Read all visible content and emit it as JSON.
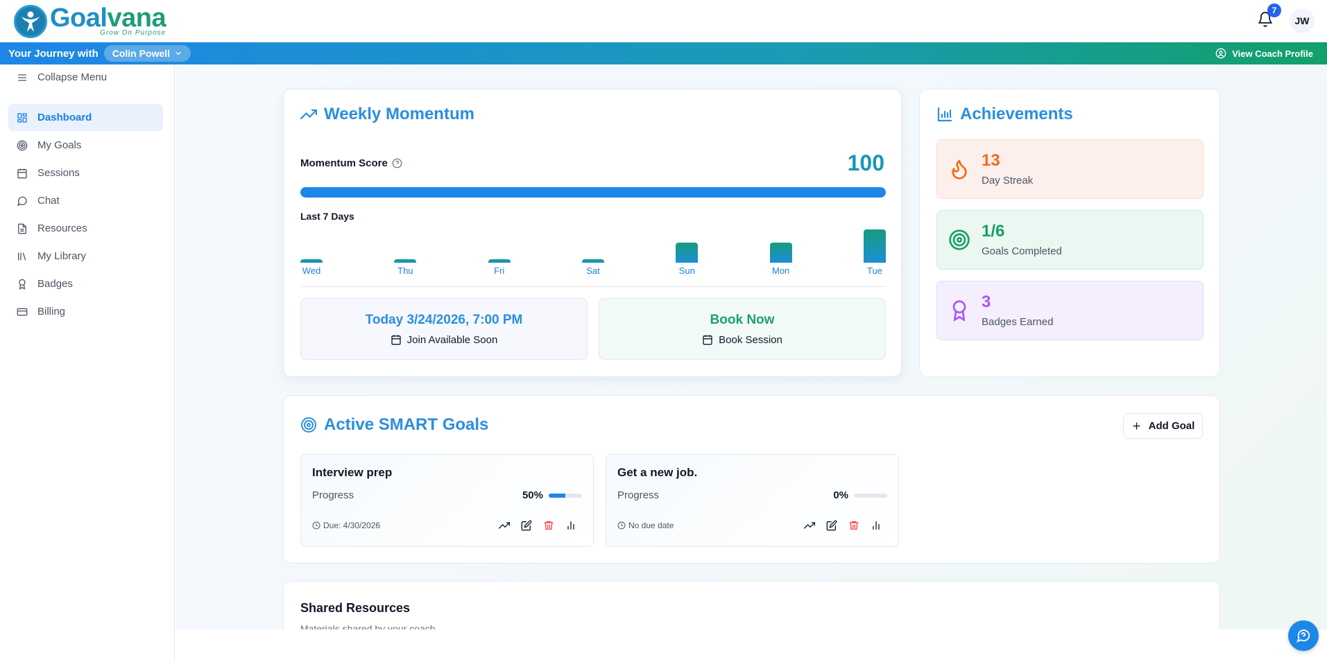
{
  "header": {
    "brand": {
      "word_a": "Goal",
      "word_b": "vana",
      "tagline": "Grow On Purpose"
    },
    "notification_count": "7",
    "user_initials": "JW"
  },
  "journey_bar": {
    "label": "Your Journey with",
    "coach_name": "Colin Powell",
    "view_profile": "View Coach Profile"
  },
  "sidebar": {
    "collapse_label": "Collapse Menu",
    "items": [
      {
        "label": "Dashboard",
        "icon": "dashboard-icon",
        "active": true
      },
      {
        "label": "My Goals",
        "icon": "target-icon"
      },
      {
        "label": "Sessions",
        "icon": "calendar-icon"
      },
      {
        "label": "Chat",
        "icon": "chat-icon"
      },
      {
        "label": "Resources",
        "icon": "document-icon"
      },
      {
        "label": "My Library",
        "icon": "library-icon"
      },
      {
        "label": "Badges",
        "icon": "badge-icon"
      },
      {
        "label": "Billing",
        "icon": "credit-card-icon"
      }
    ]
  },
  "momentum": {
    "title": "Weekly Momentum",
    "score_label": "Momentum Score",
    "score": "100",
    "score_fraction": 1.0,
    "last7_label": "Last 7 Days",
    "days": [
      {
        "label": "Wed",
        "level": 0.1
      },
      {
        "label": "Thu",
        "level": 0.1
      },
      {
        "label": "Fri",
        "level": 0.1
      },
      {
        "label": "Sat",
        "level": 0.1
      },
      {
        "label": "Sun",
        "level": 0.6
      },
      {
        "label": "Mon",
        "level": 0.6
      },
      {
        "label": "Tue",
        "level": 1.0
      }
    ],
    "next_session": {
      "title": "Today 3/24/2026, 7:00 PM",
      "action": "Join Available Soon",
      "color": "#2a8ee0"
    },
    "book": {
      "title": "Book Now",
      "action": "Book Session",
      "color": "#1f9c78"
    }
  },
  "achievements": {
    "title": "Achievements",
    "items": [
      {
        "value": "13",
        "label": "Day Streak",
        "color": "#f26a1b",
        "bg": "#fdf0ec",
        "border": "#f9ddd4",
        "icon": "flame-icon"
      },
      {
        "value": "1/6",
        "label": "Goals Completed",
        "color": "#16a063",
        "bg": "#ebf7f1",
        "border": "#cfeadd",
        "icon": "target-icon"
      },
      {
        "value": "3",
        "label": "Badges Earned",
        "color": "#a855f7",
        "bg": "#f5eefe",
        "border": "#e6d7fb",
        "icon": "award-icon"
      }
    ]
  },
  "goals": {
    "title": "Active SMART Goals",
    "add_label": "Add Goal",
    "progress_label": "Progress",
    "items": [
      {
        "title": "Interview prep",
        "percent": "50%",
        "fraction": 0.5,
        "due": "Due: 4/30/2026"
      },
      {
        "title": "Get a new job.",
        "percent": "0%",
        "fraction": 0.0,
        "due": "No due date"
      }
    ]
  },
  "shared": {
    "title": "Shared Resources",
    "subtitle": "Materials shared by your coach"
  }
}
